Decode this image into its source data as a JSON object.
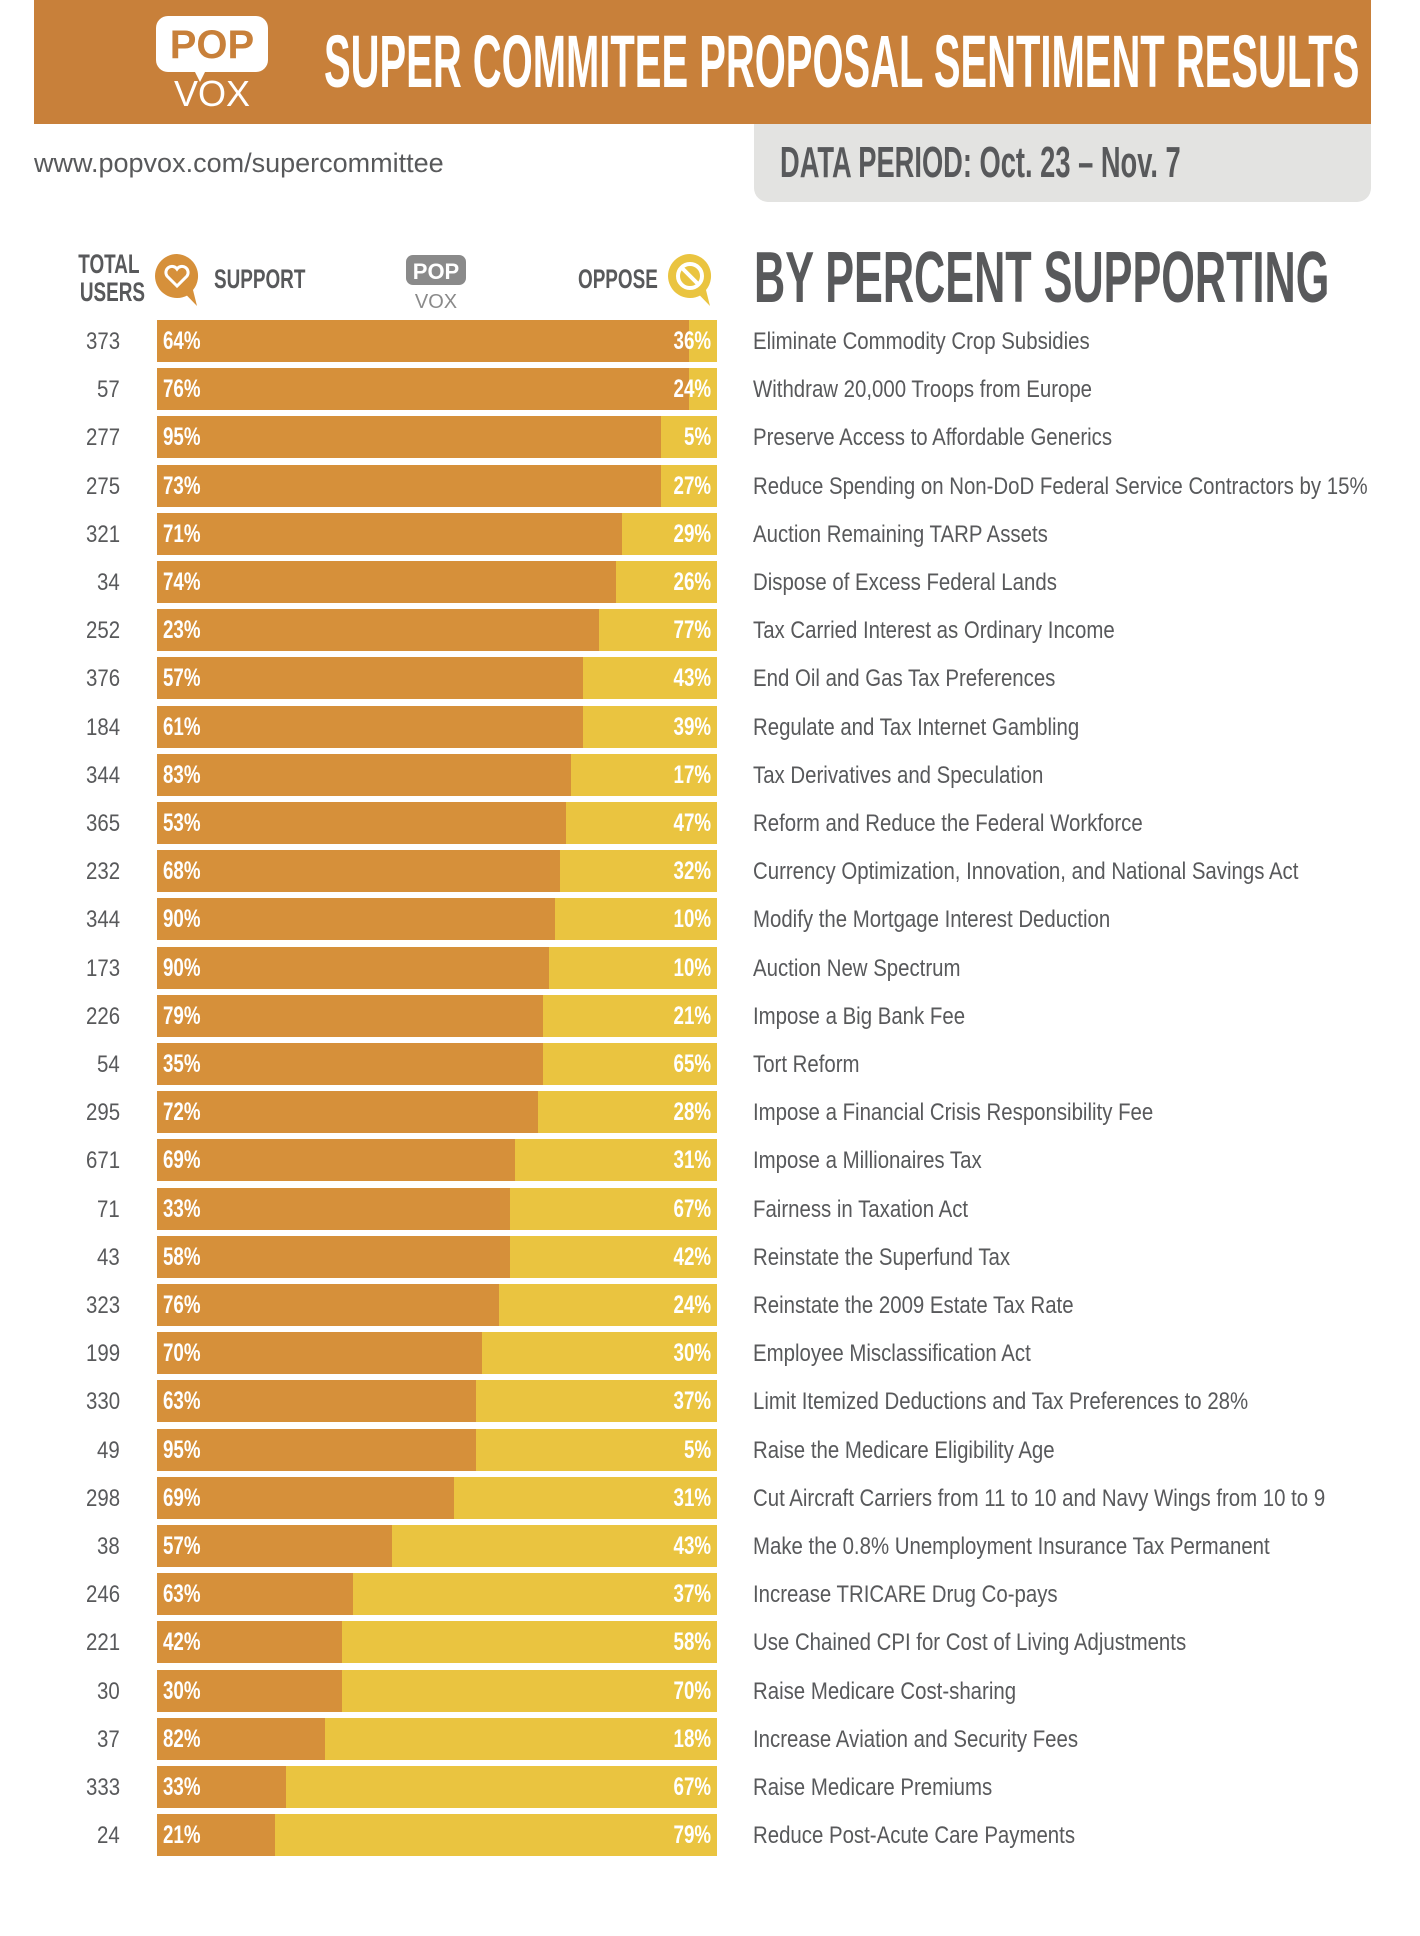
{
  "header": {
    "title": "SUPER COMMITEE PROPOSAL SENTIMENT RESULTS",
    "logo_text": [
      "POP",
      "VOX"
    ],
    "url": "www.popvox.com/supercommittee",
    "data_period": "DATA PERIOD: Oct. 23 – Nov. 7"
  },
  "colors": {
    "header": "#C8803A",
    "support": "#D6903A",
    "oppose": "#EAC440",
    "text": "#58595B",
    "period_box": "#E3E3E1"
  },
  "chart_data": {
    "type": "bar",
    "orientation": "horizontal-stacked",
    "title": "BY PERCENT SUPPORTING",
    "column_headers": {
      "users": [
        "TOTAL",
        "USERS"
      ],
      "support": "SUPPORT",
      "oppose": "OPPOSE",
      "logo": [
        "POP",
        "VOX"
      ]
    },
    "categories": [
      "Eliminate Commodity Crop Subsidies",
      "Withdraw 20,000 Troops from Europe",
      "Preserve Access to Affordable Generics",
      "Reduce Spending on Non-DoD Federal Service Contractors by 15%",
      "Auction Remaining TARP Assets",
      "Dispose of Excess Federal Lands",
      "Tax Carried Interest as Ordinary Income",
      "End Oil and Gas Tax Preferences",
      "Regulate and Tax Internet Gambling",
      "Tax Derivatives and Speculation",
      "Reform and Reduce the Federal Workforce",
      "Currency Optimization, Innovation, and National Savings Act",
      "Modify the Mortgage Interest Deduction",
      "Auction New Spectrum",
      "Impose a Big Bank Fee",
      "Tort Reform",
      "Impose a Financial Crisis Responsibility Fee",
      "Impose a Millionaires Tax",
      "Fairness in Taxation Act",
      "Reinstate the Superfund Tax",
      "Reinstate the 2009 Estate Tax Rate",
      "Employee Misclassification Act",
      "Limit Itemized Deductions and Tax Preferences to 28%",
      "Raise the Medicare Eligibility Age",
      "Cut Aircraft Carriers from 11 to 10 and Navy Wings from 10 to 9",
      "Make the 0.8% Unemployment Insurance Tax Permanent",
      "Increase TRICARE Drug Co-pays",
      "Use Chained CPI for Cost of Living Adjustments",
      "Raise Medicare Cost-sharing",
      "Increase Aviation and Security Fees",
      "Raise Medicare Premiums",
      "Reduce Post-Acute Care Payments"
    ],
    "total_users": [
      373,
      57,
      277,
      275,
      321,
      34,
      252,
      376,
      184,
      344,
      365,
      232,
      344,
      173,
      226,
      54,
      295,
      671,
      71,
      43,
      323,
      199,
      330,
      49,
      298,
      38,
      246,
      221,
      30,
      37,
      333,
      24
    ],
    "support_labels": [
      "64%",
      "76%",
      "95%",
      "73%",
      "71%",
      "74%",
      "23%",
      "57%",
      "61%",
      "83%",
      "53%",
      "68%",
      "90%",
      "90%",
      "79%",
      "35%",
      "72%",
      "69%",
      "33%",
      "58%",
      "76%",
      "70%",
      "63%",
      "95%",
      "69%",
      "57%",
      "63%",
      "42%",
      "30%",
      "82%",
      "33%",
      "21%"
    ],
    "oppose_labels": [
      "36%",
      "24%",
      "5%",
      "27%",
      "29%",
      "26%",
      "77%",
      "43%",
      "39%",
      "17%",
      "47%",
      "32%",
      "10%",
      "10%",
      "21%",
      "65%",
      "28%",
      "31%",
      "67%",
      "42%",
      "24%",
      "30%",
      "37%",
      "5%",
      "31%",
      "43%",
      "37%",
      "58%",
      "70%",
      "18%",
      "67%",
      "79%"
    ],
    "bar_fill_percent": [
      95,
      95,
      90,
      90,
      83,
      82,
      79,
      76,
      76,
      74,
      73,
      72,
      71,
      70,
      69,
      69,
      68,
      64,
      63,
      63,
      61,
      58,
      57,
      57,
      53,
      42,
      35,
      33,
      33,
      30,
      23,
      21
    ],
    "xlim": [
      0,
      100
    ]
  }
}
